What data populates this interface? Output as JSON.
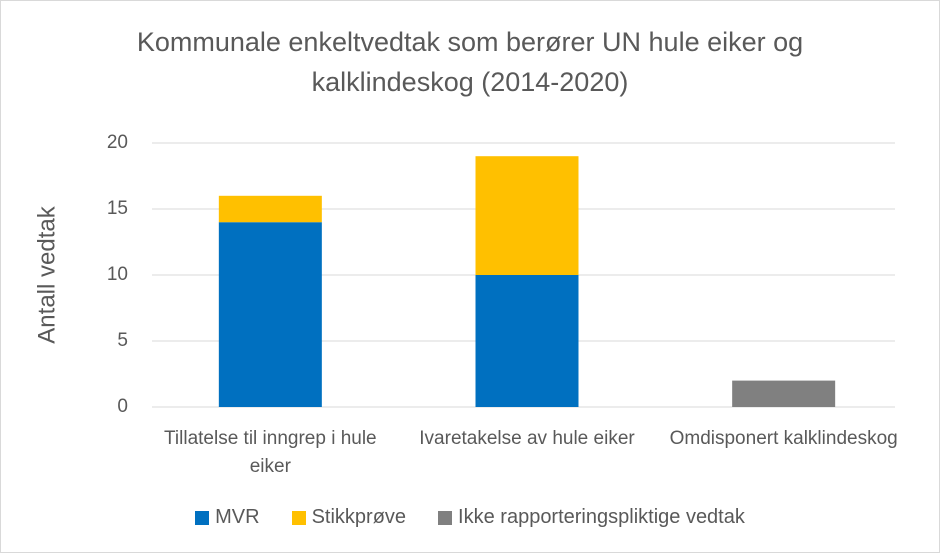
{
  "chart_data": {
    "type": "stacked_bar",
    "title": "Kommunale enkeltvedtak som berører UN hule eiker og kalklindeskog (2014-2020)",
    "y_label": "Antall vedtak",
    "categories": [
      "Tillatelse til inngrep i hule eiker",
      "Ivaretakelse av hule eiker",
      "Omdisponert kalklindeskog"
    ],
    "series": [
      {
        "name": "MVR",
        "color": "#0070c0",
        "values": [
          14,
          10,
          null
        ]
      },
      {
        "name": "Stikkprøve",
        "color": "#ffc000",
        "values": [
          2,
          9,
          null
        ]
      },
      {
        "name": "Ikke rapporteringspliktige vedtak",
        "color": "#808080",
        "values": [
          null,
          null,
          2
        ]
      }
    ],
    "ylim": [
      0,
      20
    ],
    "yticks": [
      0,
      5,
      10,
      15,
      20
    ],
    "grid": true,
    "legend": "bottom"
  }
}
